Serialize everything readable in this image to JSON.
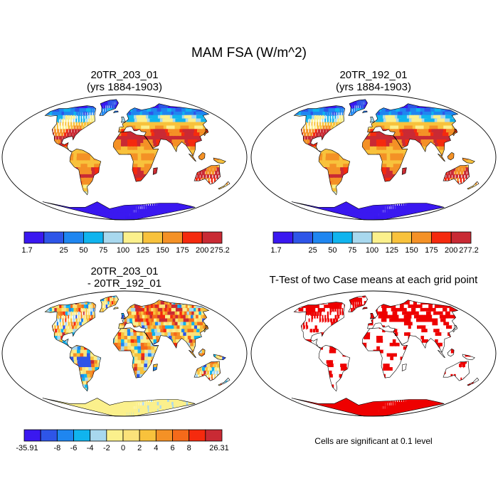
{
  "main_title": "MAM FSA (W/m^2)",
  "panels": {
    "top_left": {
      "title_line1": "20TR_203_01",
      "title_line2": "(yrs 1884-1903)"
    },
    "top_right": {
      "title_line1": "20TR_192_01",
      "title_line2": "(yrs 1884-1903)"
    },
    "bottom_left": {
      "title_line1": "20TR_203_01",
      "title_line2": "- 20TR_192_01"
    },
    "bottom_right": {
      "title_line1": "T-Test of two Case means at each grid point"
    }
  },
  "colorbars": {
    "top_left": {
      "colors": [
        "#3a18f0",
        "#2e55e8",
        "#1f86f0",
        "#10b4ee",
        "#a8d8ee",
        "#fbf08c",
        "#f8c23c",
        "#f49126",
        "#f52a0e",
        "#c92a34"
      ],
      "labels": [
        "1.7",
        "25",
        "50",
        "75",
        "100",
        "125",
        "150",
        "175",
        "200",
        "275.2"
      ]
    },
    "top_right": {
      "colors": [
        "#3a18f0",
        "#2e55e8",
        "#1f86f0",
        "#10b4ee",
        "#a8d8ee",
        "#fbf08c",
        "#f8c23c",
        "#f49126",
        "#f52a0e",
        "#c92a34"
      ],
      "labels": [
        "1.7",
        "25",
        "50",
        "75",
        "100",
        "125",
        "150",
        "175",
        "200",
        "277.2"
      ]
    },
    "bottom_left": {
      "colors": [
        "#3a18f0",
        "#2e55e8",
        "#1f86f0",
        "#10b4ee",
        "#a8d8ee",
        "#fbf08c",
        "#fbe27a",
        "#f8c23c",
        "#f49126",
        "#f56a1a",
        "#f52a0e",
        "#c92a34"
      ],
      "labels": [
        "-35.91",
        "-8",
        "-6",
        "-4",
        "-2",
        "0",
        "2",
        "4",
        "6",
        "8",
        "26.31"
      ]
    }
  },
  "significance_note": "Cells are significant at 0.1 level",
  "colors": {
    "ocean": "#ffffff",
    "coast": "#000000",
    "significant": "#ee0000"
  }
}
